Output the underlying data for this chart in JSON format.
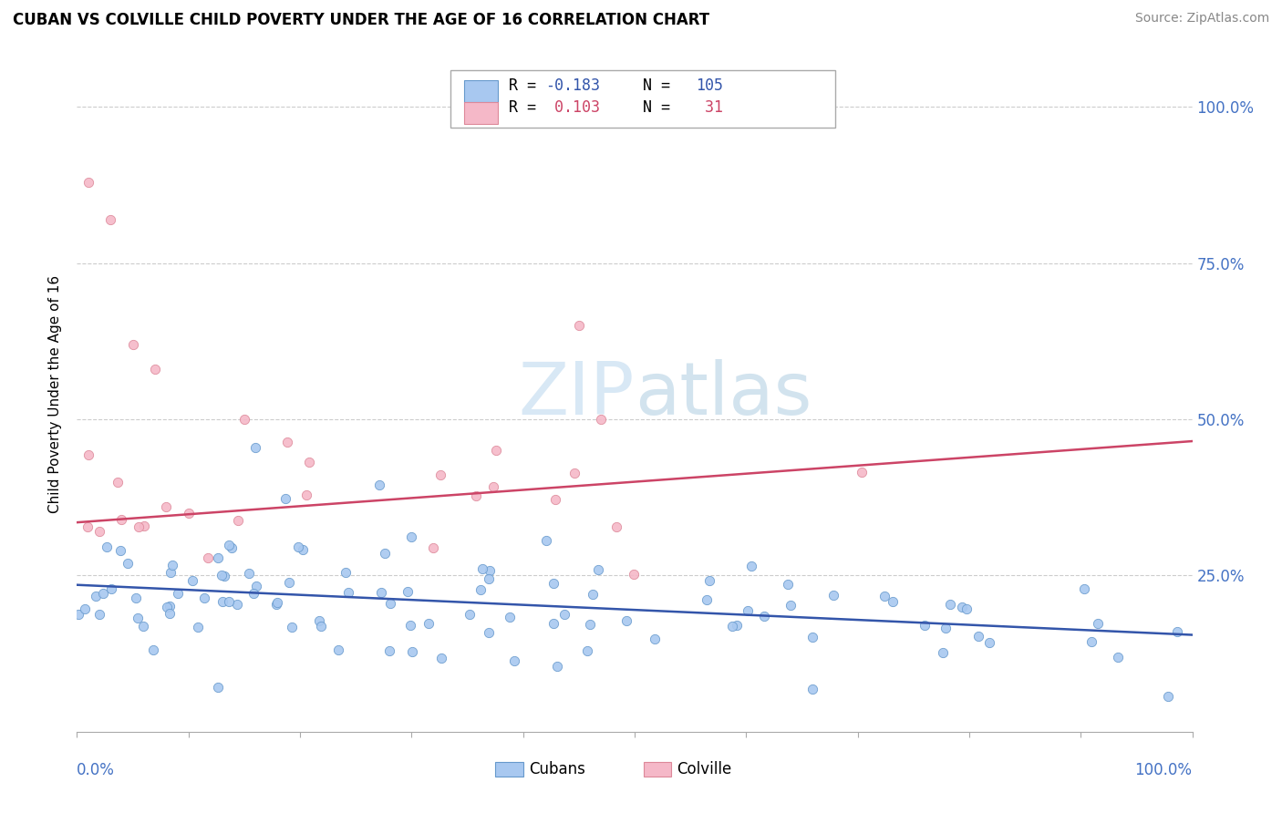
{
  "title": "CUBAN VS COLVILLE CHILD POVERTY UNDER THE AGE OF 16 CORRELATION CHART",
  "source": "Source: ZipAtlas.com",
  "ylabel": "Child Poverty Under the Age of 16",
  "xlim": [
    0.0,
    1.0
  ],
  "ylim": [
    0.0,
    1.08
  ],
  "blue_scatter_color": "#A8C8F0",
  "blue_edge_color": "#6699CC",
  "pink_scatter_color": "#F5B8C8",
  "pink_edge_color": "#DD8899",
  "blue_line_color": "#3355AA",
  "pink_line_color": "#CC4466",
  "background_color": "#FFFFFF",
  "grid_color": "#CCCCCC",
  "watermark_color": "#D8E8F5",
  "title_color": "#000000",
  "source_color": "#888888",
  "axis_label_color": "#4472C4",
  "legend_r1_text": "R = -0.183",
  "legend_n1_text": "N = 105",
  "legend_r2_text": "R =  0.103",
  "legend_n2_text": "N =  31",
  "blue_trend_start": 0.235,
  "blue_trend_end": 0.155,
  "pink_trend_start": 0.335,
  "pink_trend_end": 0.465
}
